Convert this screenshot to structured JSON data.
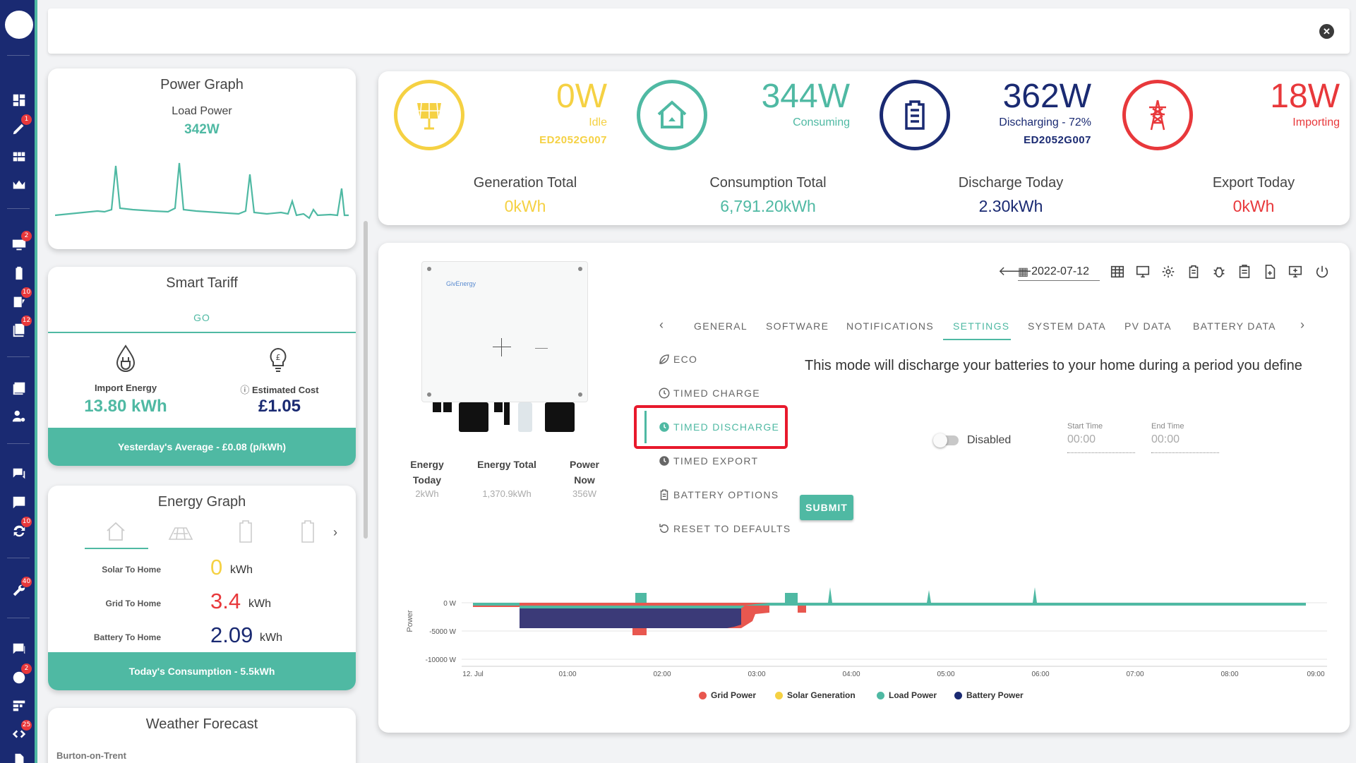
{
  "rail": {
    "badges": [
      "1",
      "2",
      "10",
      "12",
      "10",
      "40",
      "2",
      "25"
    ]
  },
  "power_graph": {
    "title": "Power Graph",
    "label": "Load Power",
    "value": "342W"
  },
  "smart_tariff": {
    "title": "Smart Tariff",
    "tab": "GO",
    "import_label": "Import Energy",
    "import_value": "13.80 kWh",
    "cost_label": "Estimated Cost",
    "cost_value": "£1.05",
    "footer": "Yesterday's Average - £0.08 (p/kWh)"
  },
  "energy_graph": {
    "title": "Energy Graph",
    "rows": [
      {
        "label": "Solar To Home",
        "value": "0",
        "unit": "kWh",
        "color": "#f5d143"
      },
      {
        "label": "Grid To Home",
        "value": "3.4",
        "unit": "kWh",
        "color": "#e8383b"
      },
      {
        "label": "Battery To Home",
        "value": "2.09",
        "unit": "kWh",
        "color": "#1a2a72"
      }
    ],
    "footer": "Today's Consumption - 5.5kWh"
  },
  "weather": {
    "title": "Weather Forecast",
    "location": "Burton-on-Trent"
  },
  "stats": {
    "solar": {
      "value": "0W",
      "status": "Idle",
      "id": "ED2052G007",
      "color": "#f5d143"
    },
    "home": {
      "value": "344W",
      "status": "Consuming",
      "color": "#4fb9a3"
    },
    "battery": {
      "value": "362W",
      "status": "Discharging - 72%",
      "id": "ED2052G007",
      "color": "#1a2a72"
    },
    "grid": {
      "value": "18W",
      "status": "Importing",
      "color": "#e8383b"
    },
    "totals": [
      {
        "label": "Generation Total",
        "value": "0kWh",
        "color": "#f5d143"
      },
      {
        "label": "Consumption Total",
        "value": "6,791.20kWh",
        "color": "#4fb9a3"
      },
      {
        "label": "Discharge Today",
        "value": "2.30kWh",
        "color": "#1a2a72"
      },
      {
        "label": "Export Today",
        "value": "0kWh",
        "color": "#e8383b"
      }
    ]
  },
  "inverter": {
    "brand": "GivEnergy",
    "energy_today_label": "Energy Today",
    "energy_today_value": "2kWh",
    "energy_total_label": "Energy Total",
    "energy_total_value": "1,370.9kWh",
    "power_now_label": "Power Now",
    "power_now_value": "356W"
  },
  "toolbar": {
    "date": "2022-07-12"
  },
  "tabs": [
    "GENERAL",
    "SOFTWARE",
    "NOTIFICATIONS",
    "SETTINGS",
    "SYSTEM DATA",
    "PV DATA",
    "BATTERY DATA"
  ],
  "active_tab": "SETTINGS",
  "menu": [
    "ECO",
    "TIMED CHARGE",
    "TIMED DISCHARGE",
    "TIMED EXPORT",
    "BATTERY OPTIONS",
    "RESET TO DEFAULTS"
  ],
  "active_menu": "TIMED DISCHARGE",
  "settings": {
    "description": "This mode will discharge your batteries to your home during a period you define",
    "toggle_label": "Disabled",
    "toggle_on": false,
    "start_label": "Start Time",
    "start_value": "00:00",
    "end_label": "End Time",
    "end_value": "00:00",
    "submit": "SUBMIT"
  },
  "chart_data": {
    "type": "area",
    "ylabel": "Power",
    "yticks": [
      "0 W",
      "-5000 W",
      "-10000 W"
    ],
    "ylim": [
      -10000,
      1000
    ],
    "x": [
      "12. Jul",
      "01:00",
      "02:00",
      "03:00",
      "04:00",
      "05:00",
      "06:00",
      "07:00",
      "08:00",
      "09:00"
    ],
    "series": [
      {
        "name": "Grid Power",
        "color": "#e8574f"
      },
      {
        "name": "Solar Generation",
        "color": "#f5d143"
      },
      {
        "name": "Load Power",
        "color": "#4fb9a3"
      },
      {
        "name": "Battery Power",
        "color": "#3b3a78"
      }
    ]
  }
}
